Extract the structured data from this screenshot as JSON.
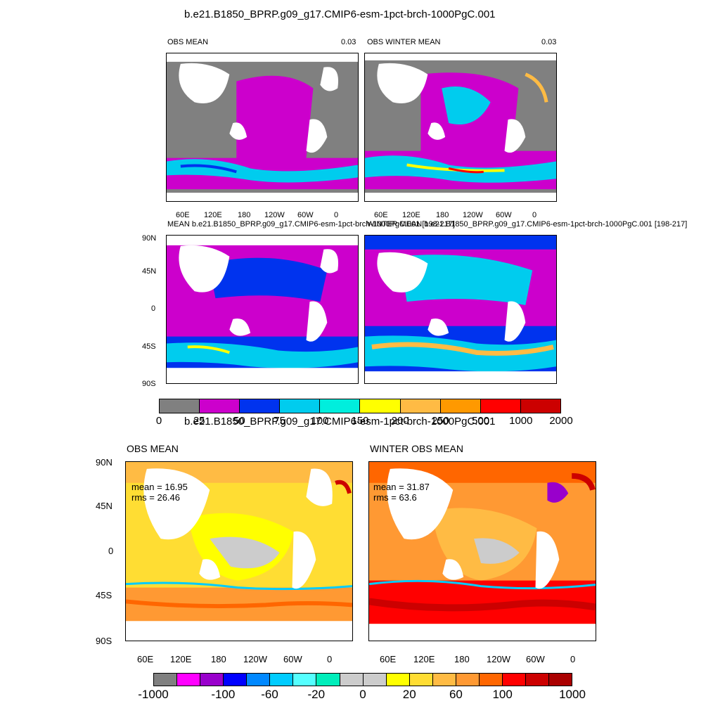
{
  "figure1": {
    "title": "b.e21.B1850_BPRP.g09_g17.CMIP6-esm-1pct-brch-1000PgC.001",
    "panels": [
      {
        "id": "obs_mean",
        "title_left": "OBS MEAN",
        "title_right": "0.03"
      },
      {
        "id": "obs_winter_mean",
        "title_left": "OBS WINTER MEAN",
        "title_right": "0.03"
      },
      {
        "id": "model_mean",
        "title_left": "MEAN b.e21.B1850_BPRP.g09_g17.CMIP6-esm-1pct-brch-1000PgC.001 [198-217]",
        "title_right": ""
      },
      {
        "id": "model_winter_mean",
        "title_left": "WINTER MEAN b.e21.B1850_BPRP.g09_g17.CMIP6-esm-1pct-brch-1000PgC.001 [198-217]",
        "title_right": ""
      }
    ],
    "lon_ticks": [
      "60E",
      "120E",
      "180",
      "120W",
      "60W",
      "0"
    ],
    "lat_ticks": [
      "90N",
      "45N",
      "0",
      "45S",
      "90S"
    ],
    "colorbar": {
      "labels": [
        "0",
        "25",
        "50",
        "75",
        "100",
        "150",
        "200",
        "250",
        "500",
        "1000",
        "2000"
      ],
      "colors": [
        "#808080",
        "#cc00cc",
        "#0033ee",
        "#00ccee",
        "#00eedd",
        "#ffff00",
        "#ffbb44",
        "#ff9900",
        "#ff0000",
        "#cc0000"
      ]
    }
  },
  "figure2": {
    "title": "b.e21.B1850_BPRP.g09_g17.CMIP6-esm-1pct-brch-1000PgC.001",
    "panels": [
      {
        "id": "obs_mean",
        "title": "OBS MEAN",
        "mean": "mean = 16.95",
        "rms": "rms = 26.46"
      },
      {
        "id": "winter_obs_mean",
        "title": "WINTER OBS MEAN",
        "mean": "mean = 31.87",
        "rms": "rms = 63.6"
      }
    ],
    "lon_ticks": [
      "60E",
      "120E",
      "180",
      "120W",
      "60W",
      "0"
    ],
    "lat_ticks": [
      "90N",
      "45N",
      "0",
      "45S",
      "90S"
    ],
    "colorbar": {
      "labels": [
        "-1000",
        "-100",
        "-60",
        "-20",
        "0",
        "20",
        "60",
        "100",
        "1000"
      ],
      "colors": [
        "#808080",
        "#ff00ff",
        "#9900cc",
        "#0000ff",
        "#0088ff",
        "#00ccff",
        "#55ffff",
        "#00eebb",
        "#cccccc",
        "#cccccc",
        "#ffff00",
        "#ffdd33",
        "#ffbb44",
        "#ff9933",
        "#ff6600",
        "#ff0000",
        "#cc0000",
        "#aa0000"
      ]
    }
  }
}
